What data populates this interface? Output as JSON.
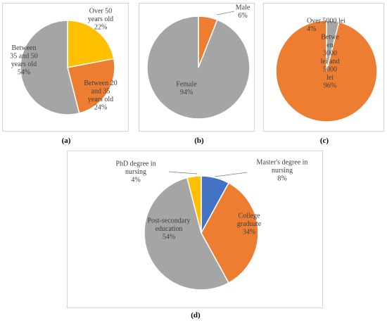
{
  "chart_data": [
    {
      "type": "pie",
      "caption": "(a)",
      "slices": [
        {
          "label_lines": [
            "Over 50",
            "years old",
            "22%"
          ],
          "value": 22,
          "color": "#ffc000"
        },
        {
          "label_lines": [
            "Between 20",
            "and 35",
            "years old",
            "24%"
          ],
          "value": 24,
          "color": "#ed7d31"
        },
        {
          "label_lines": [
            "Between",
            "35 and 50",
            "years old",
            "54%"
          ],
          "value": 54,
          "color": "#a5a5a5"
        }
      ]
    },
    {
      "type": "pie",
      "caption": "(b)",
      "slices": [
        {
          "label_lines": [
            "Male",
            "6%"
          ],
          "value": 6,
          "color": "#ed7d31"
        },
        {
          "label_lines": [
            "Female",
            "94%"
          ],
          "value": 94,
          "color": "#a5a5a5"
        }
      ]
    },
    {
      "type": "pie",
      "caption": "(c)",
      "slices": [
        {
          "label_lines": [
            "Over 5000 lei",
            "4%"
          ],
          "value": 4,
          "color": "#a5a5a5"
        },
        {
          "label_lines": [
            "Betwe",
            "en",
            "3000",
            "lei and",
            "5000",
            "lei",
            "96%"
          ],
          "value": 96,
          "color": "#ed7d31"
        }
      ]
    },
    {
      "type": "pie",
      "caption": "(d)",
      "slices": [
        {
          "label_lines": [
            "Master's degree in",
            "nursing",
            "8%"
          ],
          "value": 8,
          "color": "#4472c4"
        },
        {
          "label_lines": [
            "College",
            "graduate",
            "34%"
          ],
          "value": 34,
          "color": "#ed7d31"
        },
        {
          "label_lines": [
            "Post-secondary",
            "education",
            "54%"
          ],
          "value": 54,
          "color": "#a5a5a5"
        },
        {
          "label_lines": [
            "PhD degree in",
            "nursing",
            "4%"
          ],
          "value": 4,
          "color": "#ffc000"
        }
      ]
    }
  ]
}
